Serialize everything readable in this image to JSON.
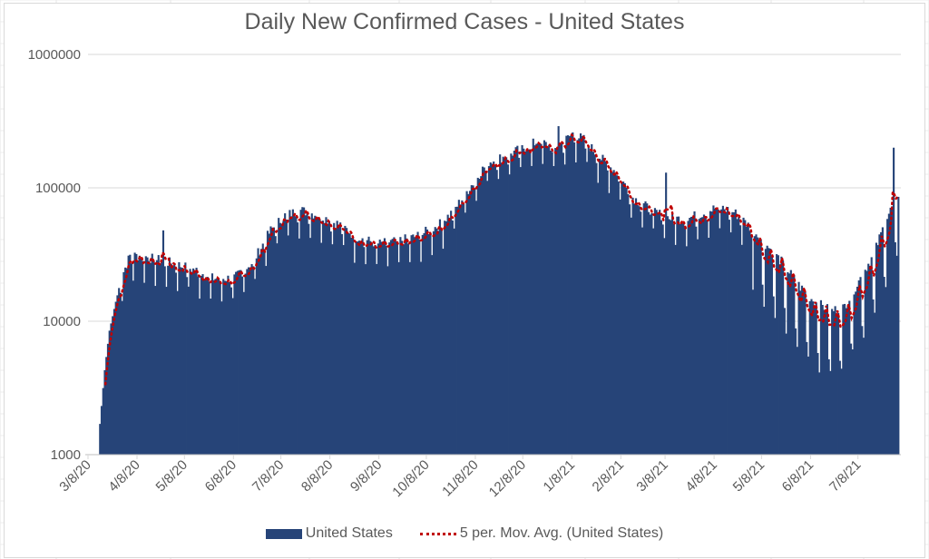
{
  "chart_data": {
    "type": "bar",
    "title": "Daily New Confirmed Cases - United States",
    "xlabel": "",
    "ylabel": "",
    "yscale": "log",
    "ylim": [
      1000,
      1000000
    ],
    "y_ticks": [
      "1000",
      "10000",
      "100000",
      "1000000"
    ],
    "x_tick_labels": [
      "3/8/20",
      "4/8/20",
      "5/8/20",
      "6/8/20",
      "7/8/20",
      "8/8/20",
      "9/8/20",
      "10/8/20",
      "11/8/20",
      "12/8/20",
      "1/8/21",
      "2/8/21",
      "3/8/21",
      "4/8/21",
      "5/8/21",
      "6/8/21",
      "7/8/21"
    ],
    "x_range": [
      "2020-03-08",
      "2021-08-03"
    ],
    "grid": "horizontal",
    "legend_position": "bottom",
    "series": [
      {
        "name": "United States",
        "type": "bar",
        "color": "#264478",
        "anchor_dates": [
          "2020-03-15",
          "2020-03-18",
          "2020-03-21",
          "2020-03-25",
          "2020-03-29",
          "2020-04-03",
          "2020-04-10",
          "2020-04-20",
          "2020-05-01",
          "2020-05-15",
          "2020-05-25",
          "2020-06-08",
          "2020-06-20",
          "2020-07-01",
          "2020-07-10",
          "2020-07-20",
          "2020-08-01",
          "2020-08-15",
          "2020-08-25",
          "2020-09-08",
          "2020-09-20",
          "2020-10-01",
          "2020-10-15",
          "2020-10-25",
          "2020-11-05",
          "2020-11-15",
          "2020-11-25",
          "2020-12-08",
          "2020-12-18",
          "2020-12-28",
          "2021-01-08",
          "2021-01-15",
          "2021-01-25",
          "2021-02-05",
          "2021-02-15",
          "2021-02-25",
          "2021-03-08",
          "2021-03-20",
          "2021-04-01",
          "2021-04-10",
          "2021-04-20",
          "2021-05-01",
          "2021-05-10",
          "2021-05-20",
          "2021-06-01",
          "2021-06-10",
          "2021-06-20",
          "2021-06-28",
          "2021-07-08",
          "2021-07-18",
          "2021-07-25",
          "2021-08-02"
        ],
        "anchor_values": [
          1700,
          4300,
          8500,
          14000,
          22000,
          31000,
          31000,
          29000,
          27000,
          24000,
          21000,
          21000,
          28000,
          48000,
          62000,
          68000,
          62000,
          52000,
          42000,
          38000,
          40000,
          43000,
          52000,
          68000,
          105000,
          155000,
          170000,
          200000,
          225000,
          195000,
          255000,
          230000,
          170000,
          130000,
          85000,
          70000,
          60000,
          58000,
          65000,
          72000,
          66000,
          50000,
          38000,
          28000,
          18000,
          14000,
          12000,
          12500,
          20000,
          33000,
          57000,
          90000
        ],
        "notable_spikes": [
          {
            "date": "2020-04-24",
            "value": 48000
          },
          {
            "date": "2020-12-30",
            "value": 290000
          },
          {
            "date": "2021-03-08",
            "value": 130000
          },
          {
            "date": "2021-07-30",
            "value": 200000
          }
        ]
      },
      {
        "name": "5 per. Mov. Avg. (United States)",
        "type": "line",
        "style": "dotted",
        "color": "#c00000",
        "period": 5
      }
    ]
  }
}
